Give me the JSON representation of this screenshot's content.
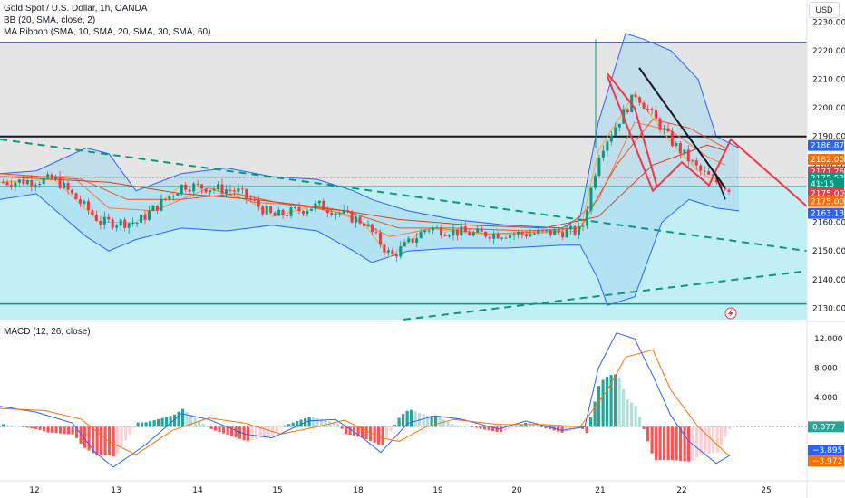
{
  "legend": {
    "symbol": "Gold Spot / U.S. Dollar, 1h, OANDA",
    "bb": "BB (20, SMA, close, 2)",
    "ma": "MA Ribbon (SMA, 10, SMA, 20, SMA, 30, SMA, 60)",
    "macd": "MACD (12, 26, close)"
  },
  "currency": "USD",
  "colors": {
    "up": "#089981",
    "down": "#f23645",
    "bb": "#2962ff",
    "bb_fill": "#a8d8f0",
    "upper_zone": "#dcdcdc",
    "lower_zone": "#b2ebf2",
    "teal": "#089981",
    "macd": "#2962ff",
    "signal": "#ff6d00",
    "red_pattern": "#f23645"
  },
  "chart_data": [
    {
      "type": "candlestick",
      "name": "price",
      "y_ticks": [
        "2230.000",
        "2220.000",
        "2210.000",
        "2200.000",
        "2190.000",
        "2180.000",
        "2170.000",
        "2160.000",
        "2150.000",
        "2140.000",
        "2130.000"
      ],
      "ylim": [
        2126,
        2232
      ],
      "x_ticks": [
        "12",
        "13",
        "14",
        "15",
        "18",
        "19",
        "20",
        "21",
        "22",
        "25"
      ],
      "price_tags": [
        {
          "label": "2186.870",
          "value": 2186.87,
          "color": "#2962ff"
        },
        {
          "label": "2182.006",
          "value": 2182.006,
          "color": "#ff6d00"
        },
        {
          "label": "2177.760",
          "value": 2177.76,
          "color": "#f23645"
        },
        {
          "label": "2175.530",
          "value": 2175.53,
          "color": "#089981"
        },
        {
          "label": "41:16",
          "value": 2173.5,
          "color": "#089981"
        },
        {
          "label": "2175.002",
          "value": 2170.2,
          "color": "#f23645"
        },
        {
          "label": "2175.007",
          "value": 2167.3,
          "color": "#ff6d00"
        },
        {
          "label": "2163.135",
          "value": 2163.135,
          "color": "#2962ff"
        }
      ],
      "levels": {
        "top_zone": 2223,
        "resistance": 2190,
        "mid_zone": 2172.5,
        "support": 2131.5
      },
      "bb_upper": [
        [
          0,
          2177
        ],
        [
          40,
          2178
        ],
        [
          95,
          2186
        ],
        [
          120,
          2184
        ],
        [
          150,
          2171
        ],
        [
          200,
          2177
        ],
        [
          250,
          2179
        ],
        [
          300,
          2176
        ],
        [
          350,
          2175
        ],
        [
          390,
          2171
        ],
        [
          410,
          2168
        ],
        [
          450,
          2164
        ],
        [
          500,
          2161
        ],
        [
          560,
          2159
        ],
        [
          620,
          2158
        ],
        [
          640,
          2162
        ],
        [
          660,
          2195
        ],
        [
          690,
          2226
        ],
        [
          710,
          2224
        ],
        [
          740,
          2220
        ],
        [
          770,
          2210
        ],
        [
          790,
          2190
        ],
        [
          815,
          2186
        ]
      ],
      "bb_lower": [
        [
          0,
          2168
        ],
        [
          40,
          2170
        ],
        [
          95,
          2155
        ],
        [
          120,
          2150
        ],
        [
          150,
          2154
        ],
        [
          200,
          2158
        ],
        [
          250,
          2157
        ],
        [
          300,
          2159
        ],
        [
          350,
          2157
        ],
        [
          390,
          2150
        ],
        [
          410,
          2146
        ],
        [
          450,
          2150
        ],
        [
          500,
          2151
        ],
        [
          560,
          2151
        ],
        [
          620,
          2152
        ],
        [
          640,
          2152
        ],
        [
          660,
          2140
        ],
        [
          670,
          2131
        ],
        [
          700,
          2134
        ],
        [
          730,
          2160
        ],
        [
          760,
          2168
        ],
        [
          790,
          2165
        ],
        [
          815,
          2164
        ]
      ],
      "ma_lines": [
        {
          "color": "#ffa726",
          "pts": [
            [
              0,
              2174
            ],
            [
              60,
              2175
            ],
            [
              110,
              2160
            ],
            [
              150,
              2160
            ],
            [
              200,
              2173
            ],
            [
              260,
              2171
            ],
            [
              300,
              2162
            ],
            [
              350,
              2166
            ],
            [
              400,
              2160
            ],
            [
              430,
              2148
            ],
            [
              470,
              2158
            ],
            [
              520,
              2156
            ],
            [
              580,
              2156
            ],
            [
              640,
              2157
            ],
            [
              660,
              2185
            ],
            [
              700,
              2205
            ],
            [
              740,
              2188
            ],
            [
              770,
              2178
            ],
            [
              800,
              2172
            ]
          ]
        },
        {
          "color": "#ff7043",
          "pts": [
            [
              0,
              2176
            ],
            [
              80,
              2176
            ],
            [
              120,
              2165
            ],
            [
              170,
              2164
            ],
            [
              230,
              2172
            ],
            [
              280,
              2167
            ],
            [
              330,
              2166
            ],
            [
              380,
              2163
            ],
            [
              430,
              2155
            ],
            [
              480,
              2158
            ],
            [
              540,
              2156
            ],
            [
              620,
              2157
            ],
            [
              660,
              2168
            ],
            [
              700,
              2195
            ],
            [
              740,
              2192
            ],
            [
              780,
              2183
            ],
            [
              800,
              2180
            ]
          ]
        },
        {
          "color": "#f4511e",
          "pts": [
            [
              0,
              2177
            ],
            [
              90,
              2175
            ],
            [
              140,
              2168
            ],
            [
              200,
              2168
            ],
            [
              260,
              2170
            ],
            [
              320,
              2166
            ],
            [
              380,
              2164
            ],
            [
              440,
              2158
            ],
            [
              500,
              2158
            ],
            [
              580,
              2157
            ],
            [
              640,
              2158
            ],
            [
              680,
              2180
            ],
            [
              720,
              2196
            ],
            [
              760,
              2193
            ],
            [
              800,
              2186
            ]
          ]
        },
        {
          "color": "#d84315",
          "pts": [
            [
              0,
              2176
            ],
            [
              120,
              2174
            ],
            [
              200,
              2170
            ],
            [
              280,
              2168
            ],
            [
              360,
              2165
            ],
            [
              440,
              2161
            ],
            [
              520,
              2159
            ],
            [
              600,
              2158
            ],
            [
              660,
              2162
            ],
            [
              720,
              2180
            ],
            [
              780,
              2187
            ],
            [
              800,
              2185
            ]
          ]
        }
      ],
      "candle_count": 180
    },
    {
      "type": "bar-line",
      "name": "macd",
      "y_ticks": [
        "12.000",
        "8.000",
        "4.000"
      ],
      "ylim": [
        -7,
        14
      ],
      "macd_tag": "0.077",
      "macd_tags_low": [
        {
          "label": "−3.895",
          "color": "#2962ff"
        },
        {
          "label": "−3.972",
          "color": "#ff6d00"
        }
      ],
      "macd_line": [
        [
          0,
          2.8
        ],
        [
          40,
          2
        ],
        [
          80,
          0.5
        ],
        [
          105,
          -3.5
        ],
        [
          125,
          -5.5
        ],
        [
          160,
          -2.5
        ],
        [
          200,
          1.8
        ],
        [
          230,
          1
        ],
        [
          270,
          -1
        ],
        [
          300,
          -1.5
        ],
        [
          340,
          0.8
        ],
        [
          370,
          1
        ],
        [
          400,
          -1.5
        ],
        [
          420,
          -3.5
        ],
        [
          450,
          0.5
        ],
        [
          480,
          1.5
        ],
        [
          510,
          1
        ],
        [
          550,
          -0.3
        ],
        [
          580,
          0.8
        ],
        [
          620,
          -0.5
        ],
        [
          645,
          0
        ],
        [
          660,
          8
        ],
        [
          680,
          12.8
        ],
        [
          700,
          12
        ],
        [
          720,
          7
        ],
        [
          740,
          1.5
        ],
        [
          760,
          -2
        ],
        [
          790,
          -5
        ],
        [
          805,
          -3.9
        ]
      ],
      "signal_line": [
        [
          0,
          2.5
        ],
        [
          50,
          2.2
        ],
        [
          90,
          1
        ],
        [
          120,
          -2
        ],
        [
          150,
          -3.8
        ],
        [
          190,
          -0.5
        ],
        [
          230,
          1.2
        ],
        [
          270,
          0.5
        ],
        [
          310,
          -1
        ],
        [
          350,
          0
        ],
        [
          380,
          0.9
        ],
        [
          420,
          -1.5
        ],
        [
          440,
          -2
        ],
        [
          470,
          0
        ],
        [
          500,
          1
        ],
        [
          550,
          0.3
        ],
        [
          600,
          0.3
        ],
        [
          640,
          0
        ],
        [
          670,
          5
        ],
        [
          690,
          9.5
        ],
        [
          720,
          10.5
        ],
        [
          740,
          5
        ],
        [
          770,
          0
        ],
        [
          800,
          -3.5
        ],
        [
          805,
          -3.97
        ]
      ]
    }
  ]
}
